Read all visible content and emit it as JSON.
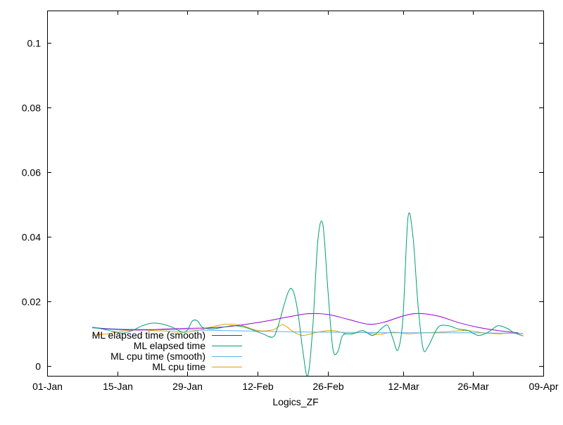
{
  "chart_data": {
    "type": "line",
    "title": "",
    "xlabel": "Logics_ZF",
    "ylabel": "",
    "x_type": "date",
    "xlim": [
      "2016-01-01",
      "2016-04-09"
    ],
    "ylim": [
      -0.003,
      0.11
    ],
    "x_ticks": [
      {
        "date": "2016-01-01",
        "label": "01-Jan"
      },
      {
        "date": "2016-01-15",
        "label": "15-Jan"
      },
      {
        "date": "2016-01-29",
        "label": "29-Jan"
      },
      {
        "date": "2016-02-12",
        "label": "12-Feb"
      },
      {
        "date": "2016-02-26",
        "label": "26-Feb"
      },
      {
        "date": "2016-03-12",
        "label": "12-Mar"
      },
      {
        "date": "2016-03-26",
        "label": "26-Mar"
      },
      {
        "date": "2016-04-09",
        "label": "09-Apr"
      }
    ],
    "y_ticks": [
      {
        "value": 0,
        "label": "0"
      },
      {
        "value": 0.02,
        "label": "0.02"
      },
      {
        "value": 0.04,
        "label": "0.04"
      },
      {
        "value": 0.06,
        "label": "0.06"
      },
      {
        "value": 0.08,
        "label": "0.08"
      },
      {
        "value": 0.1,
        "label": "0.1"
      }
    ],
    "grid": false,
    "legend_position": "bottom-left",
    "series": [
      {
        "name": "ML elapsed time (smooth)",
        "color": "#9400d3",
        "points": [
          [
            "2016-01-10",
            0.012
          ],
          [
            "2016-01-13",
            0.0115
          ],
          [
            "2016-01-17",
            0.0112
          ],
          [
            "2016-01-21",
            0.0112
          ],
          [
            "2016-01-25",
            0.0115
          ],
          [
            "2016-01-29",
            0.0117
          ],
          [
            "2016-02-02",
            0.0118
          ],
          [
            "2016-02-06",
            0.0122
          ],
          [
            "2016-02-10",
            0.013
          ],
          [
            "2016-02-14",
            0.014
          ],
          [
            "2016-02-18",
            0.0152
          ],
          [
            "2016-02-22",
            0.0162
          ],
          [
            "2016-02-26",
            0.016
          ],
          [
            "2016-03-01",
            0.0145
          ],
          [
            "2016-03-05",
            0.013
          ],
          [
            "2016-03-08",
            0.0135
          ],
          [
            "2016-03-12",
            0.0155
          ],
          [
            "2016-03-15",
            0.0163
          ],
          [
            "2016-03-19",
            0.0155
          ],
          [
            "2016-03-23",
            0.0135
          ],
          [
            "2016-03-27",
            0.012
          ],
          [
            "2016-03-31",
            0.011
          ],
          [
            "2016-04-04",
            0.0103
          ]
        ]
      },
      {
        "name": "ML elapsed time",
        "color": "#009e73",
        "points": [
          [
            "2016-01-10",
            0.012
          ],
          [
            "2016-01-12",
            0.0115
          ],
          [
            "2016-01-14",
            0.0108
          ],
          [
            "2016-01-16",
            0.0102
          ],
          [
            "2016-01-18",
            0.011
          ],
          [
            "2016-01-20",
            0.0125
          ],
          [
            "2016-01-22",
            0.0133
          ],
          [
            "2016-01-24",
            0.013
          ],
          [
            "2016-01-26",
            0.012
          ],
          [
            "2016-01-28",
            0.0105
          ],
          [
            "2016-01-29",
            0.0112
          ],
          [
            "2016-01-30",
            0.014
          ],
          [
            "2016-01-31",
            0.014
          ],
          [
            "2016-02-01",
            0.012
          ],
          [
            "2016-02-03",
            0.0115
          ],
          [
            "2016-02-05",
            0.012
          ],
          [
            "2016-02-07",
            0.0125
          ],
          [
            "2016-02-09",
            0.0122
          ],
          [
            "2016-02-11",
            0.0112
          ],
          [
            "2016-02-13",
            0.01
          ],
          [
            "2016-02-15",
            0.009
          ],
          [
            "2016-02-16",
            0.012
          ],
          [
            "2016-02-18",
            0.0225
          ],
          [
            "2016-02-19",
            0.0235
          ],
          [
            "2016-02-20",
            0.017
          ],
          [
            "2016-02-21",
            0.005
          ],
          [
            "2016-02-22",
            -0.003
          ],
          [
            "2016-02-23",
            0.012
          ],
          [
            "2016-02-24",
            0.0385
          ],
          [
            "2016-02-25",
            0.044
          ],
          [
            "2016-02-26",
            0.024
          ],
          [
            "2016-02-27",
            0.0055
          ],
          [
            "2016-02-28",
            0.0045
          ],
          [
            "2016-02-29",
            0.0095
          ],
          [
            "2016-03-02",
            0.01
          ],
          [
            "2016-03-04",
            0.011
          ],
          [
            "2016-03-06",
            0.0095
          ],
          [
            "2016-03-08",
            0.012
          ],
          [
            "2016-03-09",
            0.0125
          ],
          [
            "2016-03-10",
            0.0085
          ],
          [
            "2016-03-11",
            0.005
          ],
          [
            "2016-03-12",
            0.015
          ],
          [
            "2016-03-13",
            0.046
          ],
          [
            "2016-03-14",
            0.04
          ],
          [
            "2016-03-15",
            0.019
          ],
          [
            "2016-03-16",
            0.0055
          ],
          [
            "2016-03-17",
            0.006
          ],
          [
            "2016-03-19",
            0.012
          ],
          [
            "2016-03-21",
            0.0125
          ],
          [
            "2016-03-23",
            0.0115
          ],
          [
            "2016-03-25",
            0.011
          ],
          [
            "2016-03-27",
            0.0095
          ],
          [
            "2016-03-29",
            0.0105
          ],
          [
            "2016-03-31",
            0.0125
          ],
          [
            "2016-04-02",
            0.0115
          ],
          [
            "2016-04-03",
            0.0105
          ],
          [
            "2016-04-05",
            0.0093
          ]
        ]
      },
      {
        "name": "ML cpu time (smooth)",
        "color": "#56b4e9",
        "points": [
          [
            "2016-01-10",
            0.0118
          ],
          [
            "2016-01-15",
            0.0115
          ],
          [
            "2016-01-22",
            0.0113
          ],
          [
            "2016-01-29",
            0.0112
          ],
          [
            "2016-02-05",
            0.011
          ],
          [
            "2016-02-12",
            0.0108
          ],
          [
            "2016-02-19",
            0.0106
          ],
          [
            "2016-02-26",
            0.0105
          ],
          [
            "2016-03-04",
            0.0104
          ],
          [
            "2016-03-11",
            0.0103
          ],
          [
            "2016-03-18",
            0.0103
          ],
          [
            "2016-03-25",
            0.0103
          ],
          [
            "2016-04-01",
            0.0102
          ],
          [
            "2016-04-05",
            0.0101
          ]
        ]
      },
      {
        "name": "ML cpu time",
        "color": "#e69f00",
        "points": [
          [
            "2016-01-10",
            0.0095
          ],
          [
            "2016-01-13",
            0.01
          ],
          [
            "2016-01-16",
            0.0108
          ],
          [
            "2016-01-19",
            0.0113
          ],
          [
            "2016-01-22",
            0.011
          ],
          [
            "2016-01-25",
            0.0108
          ],
          [
            "2016-01-28",
            0.0105
          ],
          [
            "2016-01-31",
            0.011
          ],
          [
            "2016-02-03",
            0.0122
          ],
          [
            "2016-02-06",
            0.013
          ],
          [
            "2016-02-09",
            0.0125
          ],
          [
            "2016-02-12",
            0.011
          ],
          [
            "2016-02-15",
            0.0112
          ],
          [
            "2016-02-17",
            0.0128
          ],
          [
            "2016-02-19",
            0.0108
          ],
          [
            "2016-02-21",
            0.0095
          ],
          [
            "2016-02-24",
            0.0105
          ],
          [
            "2016-02-27",
            0.011
          ],
          [
            "2016-03-01",
            0.01
          ],
          [
            "2016-03-04",
            0.0105
          ],
          [
            "2016-03-07",
            0.0098
          ],
          [
            "2016-03-10",
            0.0105
          ],
          [
            "2016-03-13",
            0.01
          ],
          [
            "2016-03-16",
            0.0103
          ],
          [
            "2016-03-19",
            0.0105
          ],
          [
            "2016-03-22",
            0.0108
          ],
          [
            "2016-03-25",
            0.011
          ],
          [
            "2016-03-28",
            0.0103
          ],
          [
            "2016-03-31",
            0.01
          ],
          [
            "2016-04-02",
            0.0102
          ],
          [
            "2016-04-05",
            0.01
          ]
        ]
      }
    ]
  }
}
